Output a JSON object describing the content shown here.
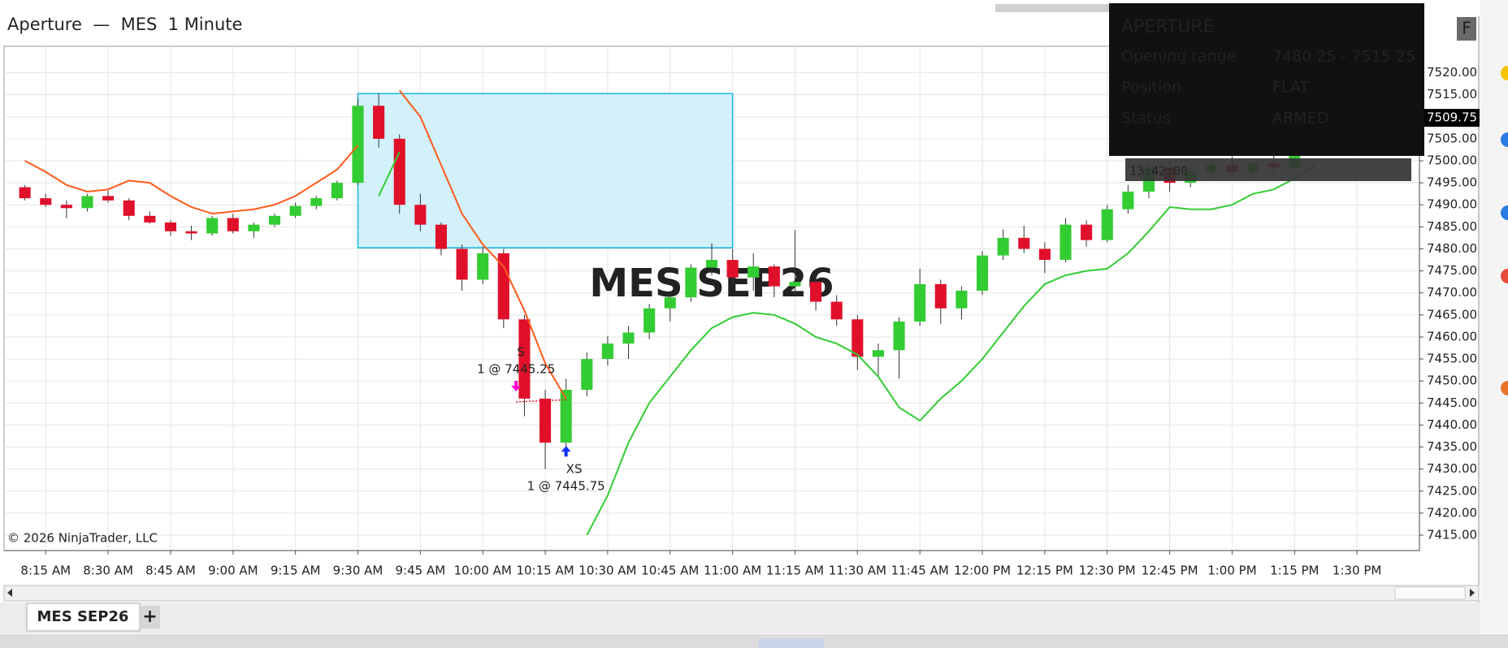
{
  "window_title": "Aperture  —  MES  1 Minute",
  "tab": "MES SEP26",
  "tab_add": "+",
  "copyright": "© 2026 NinjaTrader, LLC",
  "watermark": "MES SEP26",
  "panel": {
    "title": "APERTURE",
    "button": "F",
    "rows": [
      {
        "label": "Opening range",
        "value": "7480.25 - 7515.25"
      },
      {
        "label": "Position",
        "value": "FLAT"
      },
      {
        "label": "Status",
        "value": "ARMED"
      }
    ],
    "clock": "13:42:00"
  },
  "chart_data": {
    "type": "candlestick",
    "x": [
      "8:10 AM",
      "8:15 AM",
      "8:20 AM",
      "8:25 AM",
      "8:30 AM",
      "8:35 AM",
      "8:40 AM",
      "8:45 AM",
      "8:50 AM",
      "8:55 AM",
      "9:00 AM",
      "9:05 AM",
      "9:10 AM",
      "9:15 AM",
      "9:20 AM",
      "9:25 AM",
      "9:30 AM",
      "9:35 AM",
      "9:40 AM",
      "9:45 AM",
      "9:50 AM",
      "9:55 AM",
      "10:00 AM",
      "10:05 AM",
      "10:10 AM",
      "10:15 AM",
      "10:20 AM",
      "10:25 AM",
      "10:30 AM",
      "10:35 AM",
      "10:40 AM",
      "10:45 AM",
      "10:50 AM",
      "10:55 AM",
      "11:00 AM",
      "11:05 AM",
      "11:10 AM",
      "11:15 AM",
      "11:20 AM",
      "11:25 AM",
      "11:30 AM",
      "11:35 AM",
      "11:40 AM",
      "11:45 AM",
      "11:50 AM",
      "11:55 AM",
      "12:00 PM",
      "12:05 PM",
      "12:10 PM",
      "12:15 PM",
      "12:20 PM",
      "12:25 PM",
      "12:30 PM",
      "12:35 PM",
      "12:40 PM",
      "12:45 PM",
      "12:50 PM",
      "12:55 PM",
      "1:00 PM",
      "1:05 PM",
      "1:10 PM",
      "1:15 PM",
      "1:20 PM"
    ],
    "open": [
      7494,
      7491.5,
      7490,
      7489.25,
      7492,
      7491,
      7487.5,
      7486,
      7484,
      7483.5,
      7487,
      7484,
      7485.5,
      7487.5,
      7489.75,
      7491.5,
      7495,
      7512.5,
      7505,
      7490,
      7485.5,
      7480,
      7473,
      7479,
      7464,
      7446,
      7436,
      7448,
      7455,
      7458.5,
      7461,
      7466.5,
      7469,
      7475.75,
      7477.5,
      7473.5,
      7476,
      7471.5,
      7472.5,
      7468,
      7464,
      7455.5,
      7457,
      7463.5,
      7472,
      7466.5,
      7470.5,
      7478.5,
      7482.5,
      7480,
      7477.5,
      7485.5,
      7482,
      7489,
      7493,
      7498.5,
      7495,
      7497.5,
      7499,
      7497.5,
      7499.5,
      7498.5,
      7505
    ],
    "high": [
      7494.5,
      7492.5,
      7491,
      7492.5,
      7493.25,
      7491.5,
      7488.5,
      7486.5,
      7485.25,
      7487.5,
      7488,
      7486,
      7488,
      7490.5,
      7492,
      7495.5,
      7514,
      7515.25,
      7506,
      7492.5,
      7486,
      7481,
      7480.5,
      7480,
      7465,
      7448,
      7450.5,
      7456.5,
      7460.25,
      7462.5,
      7467.5,
      7470,
      7476.5,
      7481.25,
      7480,
      7479,
      7476.5,
      7484.25,
      7474,
      7469.5,
      7465,
      7458.5,
      7464.5,
      7475.5,
      7473,
      7471.5,
      7479.5,
      7484.5,
      7485.25,
      7481.5,
      7487,
      7486.5,
      7490,
      7494.5,
      7499.5,
      7500,
      7499,
      7500.5,
      7501,
      7500,
      7502,
      7506,
      7510.5
    ],
    "low": [
      7491,
      7489.5,
      7487,
      7488.5,
      7490.5,
      7486.5,
      7485.75,
      7483,
      7482,
      7483,
      7483.5,
      7482.5,
      7485,
      7487,
      7489,
      7491,
      7494.5,
      7503,
      7488,
      7484,
      7478.5,
      7470.5,
      7472,
      7462,
      7442,
      7430,
      7434.5,
      7446.5,
      7453.5,
      7455,
      7459.5,
      7463.5,
      7468,
      7474,
      7471.5,
      7470.5,
      7469,
      7469.5,
      7466,
      7462.5,
      7452.5,
      7451,
      7450.5,
      7462.5,
      7463,
      7464,
      7469.5,
      7477.5,
      7479,
      7474.5,
      7477,
      7480.5,
      7481.5,
      7488,
      7491.5,
      7493,
      7494,
      7496,
      7496.5,
      7496,
      7497.5,
      7498,
      7504
    ],
    "close": [
      7491.5,
      7490,
      7489.25,
      7492,
      7491,
      7487.5,
      7486,
      7484,
      7483.5,
      7487,
      7484,
      7485.5,
      7487.5,
      7489.75,
      7491.5,
      7495,
      7512.5,
      7505,
      7490,
      7485.5,
      7480,
      7473,
      7479,
      7464,
      7446,
      7436,
      7448,
      7455,
      7458.5,
      7461,
      7466.5,
      7469,
      7475.75,
      7477.5,
      7473.5,
      7476,
      7471.5,
      7472.5,
      7468,
      7464,
      7455.5,
      7457,
      7463.5,
      7472,
      7466.5,
      7470.5,
      7478.5,
      7482.5,
      7480,
      7477.5,
      7485.5,
      7482,
      7489,
      7493,
      7498.5,
      7495,
      7497.5,
      7499,
      7497.5,
      7499.5,
      7498.5,
      7505,
      7509.75
    ],
    "up_color": "#33cc33",
    "down_color": "#e0102b",
    "wick_color": "#333333",
    "indicators": [
      {
        "color": "#ff5a1a",
        "values": [
          7500,
          7497.5,
          7494.5,
          7493,
          7493.5,
          7495.5,
          7495,
          7492,
          7489.5,
          7488,
          7488.5,
          7489,
          7490,
          7492,
          7495,
          7498,
          7503.5,
          null,
          7516,
          7510,
          7499,
          7488,
          7481,
          7476,
          7466,
          7454,
          7446,
          null,
          null,
          null,
          null,
          null,
          null,
          null,
          null,
          null,
          null,
          null,
          null,
          null,
          null,
          null,
          null,
          null,
          null,
          null,
          null,
          null,
          null,
          null,
          null,
          null,
          null,
          null,
          null,
          null,
          null,
          null,
          null,
          null,
          null,
          null,
          null
        ]
      },
      {
        "color": "#33cc33",
        "values": [
          null,
          null,
          null,
          null,
          null,
          null,
          null,
          null,
          null,
          null,
          null,
          null,
          null,
          null,
          null,
          null,
          null,
          7492,
          7502,
          null,
          null,
          null,
          null,
          null,
          null,
          null,
          null,
          7415,
          7424,
          7436,
          7445,
          7451,
          7457,
          7462,
          7464.5,
          7465.5,
          7465,
          7463,
          7460,
          7458.5,
          7456,
          7451,
          7444,
          7441,
          7446,
          7450,
          7455,
          7461,
          7467,
          7472,
          7474,
          7475,
          7475.5,
          7479,
          7484,
          7489.5,
          7489,
          7489,
          7490,
          7492.5,
          7493.5,
          7496,
          7499
        ]
      }
    ],
    "xlim": [
      "8:05 AM",
      "1:45 PM"
    ],
    "xticks": [
      "8:15 AM",
      "8:30 AM",
      "8:45 AM",
      "9:00 AM",
      "9:15 AM",
      "9:30 AM",
      "9:45 AM",
      "10:00 AM",
      "10:15 AM",
      "10:30 AM",
      "10:45 AM",
      "11:00 AM",
      "11:15 AM",
      "11:30 AM",
      "11:45 AM",
      "12:00 PM",
      "12:15 PM",
      "12:30 PM",
      "12:45 PM",
      "1:00 PM",
      "1:15 PM",
      "1:30 PM"
    ],
    "ylim": [
      7411.5,
      7526
    ],
    "yticks": [
      {
        "value": 7415,
        "label": "7415.00"
      },
      {
        "value": 7420,
        "label": "7420.00"
      },
      {
        "value": 7425,
        "label": "7425.00"
      },
      {
        "value": 7430,
        "label": "7430.00"
      },
      {
        "value": 7435,
        "label": "7435.00"
      },
      {
        "value": 7440,
        "label": "7440.00"
      },
      {
        "value": 7445,
        "label": "7445.00"
      },
      {
        "value": 7450,
        "label": "7450.00"
      },
      {
        "value": 7455,
        "label": "7455.00"
      },
      {
        "value": 7460,
        "label": "7460.00"
      },
      {
        "value": 7465,
        "label": "7465.00"
      },
      {
        "value": 7470,
        "label": "7470.00"
      },
      {
        "value": 7475,
        "label": "7475.00"
      },
      {
        "value": 7480,
        "label": "7480.00"
      },
      {
        "value": 7485,
        "label": "7485.00"
      },
      {
        "value": 7490,
        "label": "7490.00"
      },
      {
        "value": 7495,
        "label": "7495.00"
      },
      {
        "value": 7500,
        "label": "7500.00"
      },
      {
        "value": 7505,
        "label": "7505.00"
      },
      {
        "value": 7510,
        "label": "7510.00"
      },
      {
        "value": 7515,
        "label": "7515.00"
      },
      {
        "value": 7520,
        "label": "7520.00"
      }
    ],
    "grid": true,
    "last_price": {
      "value": 7509.75,
      "label": "7509.75"
    },
    "opening_range": {
      "low": 7480.25,
      "high": 7515.25,
      "start": "9:30 AM",
      "end": "11:00 AM",
      "fill": "#d2f1fa",
      "stroke": "#1ab4e0"
    },
    "trades": [
      {
        "signal": "S",
        "label": "1 @ 7445.25",
        "x": "10:08 AM",
        "price": 7445.25,
        "direction": "down",
        "color": "#ff00cc"
      },
      {
        "signal": "XS",
        "label": "1 @ 7445.75",
        "x": "10:20 AM",
        "price": 7445.75,
        "direction": "up",
        "color": "#1030ff"
      }
    ]
  }
}
